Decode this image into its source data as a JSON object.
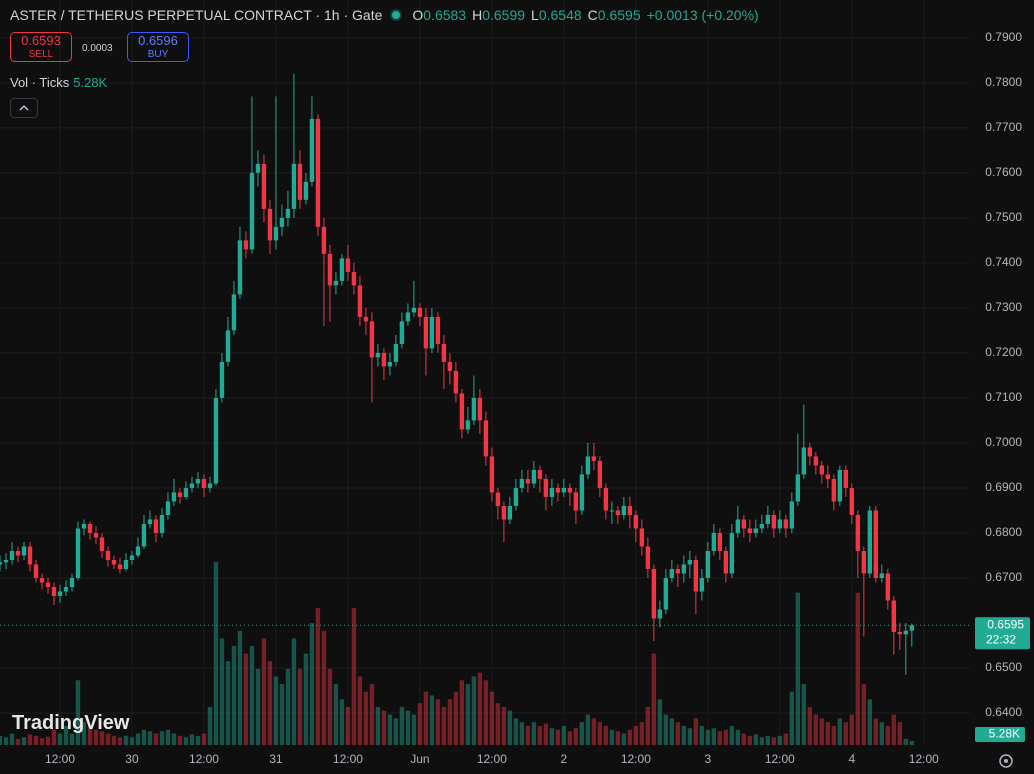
{
  "header": {
    "title": "ASTER / TETHERUS PERPETUAL CONTRACT · 1h · Gate",
    "ohlc": [
      {
        "key": "O",
        "value": "0.6583"
      },
      {
        "key": "H",
        "value": "0.6599"
      },
      {
        "key": "L",
        "value": "0.6548"
      },
      {
        "key": "C",
        "value": "0.6595"
      }
    ],
    "change": "+0.0013 (+0.20%)",
    "sell": {
      "price": "0.6593",
      "label": "SELL"
    },
    "spread": "0.0003",
    "buy": {
      "price": "0.6596",
      "label": "BUY"
    },
    "vol_legend": {
      "name": "Vol · Ticks",
      "value": "5.28K"
    },
    "logo": "TradingView"
  },
  "chart_data": {
    "type": "candlestick",
    "up_color": "#22ab94",
    "down_color": "#f23645",
    "grid": true,
    "xlim": [
      0,
      161.7
    ],
    "ylim": [
      0.6329,
      0.7984
    ],
    "vlim": [
      0,
      260
    ],
    "xticks": [
      {
        "value": 10,
        "label": "12:00"
      },
      {
        "value": 22,
        "label": "30"
      },
      {
        "value": 34,
        "label": "12:00"
      },
      {
        "value": 46,
        "label": "31"
      },
      {
        "value": 58,
        "label": "12:00"
      },
      {
        "value": 70,
        "label": "Jun"
      },
      {
        "value": 82,
        "label": "12:00"
      },
      {
        "value": 94,
        "label": "2"
      },
      {
        "value": 106,
        "label": "12:00"
      },
      {
        "value": 118,
        "label": "3"
      },
      {
        "value": 130,
        "label": "12:00"
      },
      {
        "value": 142,
        "label": "4"
      },
      {
        "value": 154,
        "label": "12:00"
      }
    ],
    "yticks": [
      {
        "value": 0.79,
        "label": "0.7900"
      },
      {
        "value": 0.78,
        "label": "0.7800"
      },
      {
        "value": 0.77,
        "label": "0.7700"
      },
      {
        "value": 0.76,
        "label": "0.7600"
      },
      {
        "value": 0.75,
        "label": "0.7500"
      },
      {
        "value": 0.74,
        "label": "0.7400"
      },
      {
        "value": 0.73,
        "label": "0.7300"
      },
      {
        "value": 0.72,
        "label": "0.7200"
      },
      {
        "value": 0.71,
        "label": "0.7100"
      },
      {
        "value": 0.7,
        "label": "0.7000"
      },
      {
        "value": 0.69,
        "label": "0.6900"
      },
      {
        "value": 0.68,
        "label": "0.6800"
      },
      {
        "value": 0.67,
        "label": "0.6700"
      },
      {
        "value": 0.65,
        "label": "0.6500"
      },
      {
        "value": 0.64,
        "label": "0.6400"
      }
    ],
    "price_tag": 0.6595,
    "countdown": "22:32",
    "volume_tag": {
      "value": 5.28,
      "label": "5.28K"
    },
    "candles": [
      [
        0.673,
        0.675,
        0.6715,
        0.6735
      ],
      [
        0.6735,
        0.6755,
        0.672,
        0.674
      ],
      [
        0.674,
        0.678,
        0.673,
        0.676
      ],
      [
        0.676,
        0.677,
        0.6735,
        0.675
      ],
      [
        0.675,
        0.678,
        0.674,
        0.677
      ],
      [
        0.677,
        0.678,
        0.6715,
        0.673
      ],
      [
        0.673,
        0.674,
        0.669,
        0.67
      ],
      [
        0.67,
        0.671,
        0.6675,
        0.669
      ],
      [
        0.669,
        0.67,
        0.6665,
        0.668
      ],
      [
        0.668,
        0.669,
        0.664,
        0.666
      ],
      [
        0.666,
        0.6685,
        0.6645,
        0.667
      ],
      [
        0.667,
        0.6695,
        0.666,
        0.668
      ],
      [
        0.668,
        0.671,
        0.667,
        0.67
      ],
      [
        0.67,
        0.6825,
        0.6695,
        0.681
      ],
      [
        0.681,
        0.683,
        0.6795,
        0.682
      ],
      [
        0.682,
        0.6825,
        0.6785,
        0.68
      ],
      [
        0.68,
        0.6815,
        0.6775,
        0.679
      ],
      [
        0.679,
        0.68,
        0.6745,
        0.676
      ],
      [
        0.676,
        0.677,
        0.6725,
        0.674
      ],
      [
        0.674,
        0.675,
        0.672,
        0.673
      ],
      [
        0.673,
        0.6745,
        0.671,
        0.672
      ],
      [
        0.672,
        0.6755,
        0.6715,
        0.674
      ],
      [
        0.674,
        0.676,
        0.673,
        0.675
      ],
      [
        0.675,
        0.679,
        0.6745,
        0.677
      ],
      [
        0.677,
        0.684,
        0.6765,
        0.682
      ],
      [
        0.682,
        0.685,
        0.681,
        0.683
      ],
      [
        0.683,
        0.684,
        0.678,
        0.68
      ],
      [
        0.68,
        0.6855,
        0.679,
        0.684
      ],
      [
        0.684,
        0.689,
        0.683,
        0.687
      ],
      [
        0.687,
        0.692,
        0.686,
        0.689
      ],
      [
        0.689,
        0.69,
        0.6865,
        0.688
      ],
      [
        0.688,
        0.6915,
        0.6875,
        0.69
      ],
      [
        0.69,
        0.6925,
        0.689,
        0.691
      ],
      [
        0.691,
        0.6935,
        0.69,
        0.692
      ],
      [
        0.692,
        0.693,
        0.688,
        0.69
      ],
      [
        0.69,
        0.6925,
        0.689,
        0.691
      ],
      [
        0.691,
        0.712,
        0.6905,
        0.71
      ],
      [
        0.71,
        0.72,
        0.709,
        0.718
      ],
      [
        0.718,
        0.728,
        0.717,
        0.725
      ],
      [
        0.725,
        0.736,
        0.724,
        0.733
      ],
      [
        0.733,
        0.748,
        0.732,
        0.745
      ],
      [
        0.745,
        0.747,
        0.741,
        0.743
      ],
      [
        0.743,
        0.777,
        0.742,
        0.76
      ],
      [
        0.76,
        0.765,
        0.757,
        0.762
      ],
      [
        0.762,
        0.764,
        0.749,
        0.752
      ],
      [
        0.752,
        0.754,
        0.742,
        0.745
      ],
      [
        0.745,
        0.777,
        0.743,
        0.748
      ],
      [
        0.748,
        0.753,
        0.746,
        0.75
      ],
      [
        0.75,
        0.756,
        0.748,
        0.752
      ],
      [
        0.752,
        0.782,
        0.75,
        0.762
      ],
      [
        0.762,
        0.765,
        0.752,
        0.754
      ],
      [
        0.754,
        0.76,
        0.753,
        0.758
      ],
      [
        0.758,
        0.777,
        0.757,
        0.772
      ],
      [
        0.772,
        0.773,
        0.746,
        0.748
      ],
      [
        0.748,
        0.75,
        0.726,
        0.742
      ],
      [
        0.742,
        0.744,
        0.727,
        0.735
      ],
      [
        0.735,
        0.738,
        0.733,
        0.736
      ],
      [
        0.736,
        0.742,
        0.735,
        0.741
      ],
      [
        0.741,
        0.744,
        0.736,
        0.738
      ],
      [
        0.738,
        0.74,
        0.733,
        0.735
      ],
      [
        0.735,
        0.737,
        0.726,
        0.728
      ],
      [
        0.728,
        0.73,
        0.724,
        0.727
      ],
      [
        0.727,
        0.729,
        0.709,
        0.719
      ],
      [
        0.719,
        0.722,
        0.717,
        0.72
      ],
      [
        0.72,
        0.721,
        0.714,
        0.717
      ],
      [
        0.717,
        0.72,
        0.715,
        0.718
      ],
      [
        0.718,
        0.724,
        0.717,
        0.722
      ],
      [
        0.722,
        0.729,
        0.721,
        0.727
      ],
      [
        0.727,
        0.731,
        0.726,
        0.729
      ],
      [
        0.729,
        0.736,
        0.728,
        0.73
      ],
      [
        0.73,
        0.731,
        0.726,
        0.728
      ],
      [
        0.728,
        0.73,
        0.715,
        0.721
      ],
      [
        0.721,
        0.73,
        0.72,
        0.728
      ],
      [
        0.728,
        0.729,
        0.72,
        0.722
      ],
      [
        0.722,
        0.724,
        0.712,
        0.718
      ],
      [
        0.718,
        0.72,
        0.713,
        0.716
      ],
      [
        0.716,
        0.718,
        0.709,
        0.711
      ],
      [
        0.711,
        0.712,
        0.701,
        0.703
      ],
      [
        0.703,
        0.708,
        0.702,
        0.705
      ],
      [
        0.705,
        0.715,
        0.704,
        0.71
      ],
      [
        0.71,
        0.712,
        0.702,
        0.705
      ],
      [
        0.705,
        0.707,
        0.695,
        0.697
      ],
      [
        0.697,
        0.699,
        0.687,
        0.689
      ],
      [
        0.689,
        0.69,
        0.683,
        0.686
      ],
      [
        0.686,
        0.687,
        0.678,
        0.683
      ],
      [
        0.683,
        0.688,
        0.682,
        0.686
      ],
      [
        0.686,
        0.692,
        0.685,
        0.69
      ],
      [
        0.69,
        0.694,
        0.689,
        0.692
      ],
      [
        0.692,
        0.694,
        0.689,
        0.691
      ],
      [
        0.691,
        0.696,
        0.69,
        0.694
      ],
      [
        0.694,
        0.695,
        0.689,
        0.692
      ],
      [
        0.692,
        0.693,
        0.685,
        0.688
      ],
      [
        0.688,
        0.692,
        0.686,
        0.69
      ],
      [
        0.69,
        0.691,
        0.687,
        0.689
      ],
      [
        0.689,
        0.692,
        0.688,
        0.69
      ],
      [
        0.69,
        0.691,
        0.686,
        0.689
      ],
      [
        0.689,
        0.69,
        0.682,
        0.685
      ],
      [
        0.685,
        0.695,
        0.684,
        0.693
      ],
      [
        0.693,
        0.7,
        0.692,
        0.697
      ],
      [
        0.697,
        0.7,
        0.694,
        0.696
      ],
      [
        0.696,
        0.697,
        0.688,
        0.69
      ],
      [
        0.69,
        0.691,
        0.683,
        0.685
      ],
      [
        0.685,
        0.687,
        0.682,
        0.685
      ],
      [
        0.685,
        0.686,
        0.682,
        0.684
      ],
      [
        0.684,
        0.688,
        0.683,
        0.686
      ],
      [
        0.686,
        0.688,
        0.681,
        0.684
      ],
      [
        0.684,
        0.685,
        0.678,
        0.681
      ],
      [
        0.681,
        0.683,
        0.675,
        0.677
      ],
      [
        0.677,
        0.679,
        0.67,
        0.672
      ],
      [
        0.672,
        0.673,
        0.656,
        0.661
      ],
      [
        0.661,
        0.665,
        0.659,
        0.663
      ],
      [
        0.663,
        0.672,
        0.662,
        0.67
      ],
      [
        0.67,
        0.674,
        0.669,
        0.672
      ],
      [
        0.672,
        0.673,
        0.668,
        0.671
      ],
      [
        0.671,
        0.675,
        0.669,
        0.673
      ],
      [
        0.673,
        0.676,
        0.67,
        0.674
      ],
      [
        0.674,
        0.675,
        0.662,
        0.667
      ],
      [
        0.667,
        0.672,
        0.665,
        0.67
      ],
      [
        0.67,
        0.678,
        0.669,
        0.676
      ],
      [
        0.676,
        0.682,
        0.675,
        0.68
      ],
      [
        0.68,
        0.681,
        0.674,
        0.676
      ],
      [
        0.676,
        0.677,
        0.669,
        0.671
      ],
      [
        0.671,
        0.682,
        0.67,
        0.68
      ],
      [
        0.68,
        0.686,
        0.679,
        0.683
      ],
      [
        0.683,
        0.684,
        0.679,
        0.681
      ],
      [
        0.681,
        0.683,
        0.678,
        0.68
      ],
      [
        0.68,
        0.683,
        0.679,
        0.681
      ],
      [
        0.681,
        0.684,
        0.68,
        0.682
      ],
      [
        0.682,
        0.686,
        0.681,
        0.684
      ],
      [
        0.684,
        0.685,
        0.679,
        0.681
      ],
      [
        0.681,
        0.685,
        0.68,
        0.683
      ],
      [
        0.683,
        0.684,
        0.679,
        0.681
      ],
      [
        0.681,
        0.689,
        0.68,
        0.687
      ],
      [
        0.687,
        0.702,
        0.686,
        0.693
      ],
      [
        0.693,
        0.7085,
        0.692,
        0.699
      ],
      [
        0.699,
        0.7,
        0.695,
        0.697
      ],
      [
        0.697,
        0.698,
        0.693,
        0.695
      ],
      [
        0.695,
        0.696,
        0.691,
        0.693
      ],
      [
        0.693,
        0.695,
        0.69,
        0.692
      ],
      [
        0.692,
        0.693,
        0.685,
        0.687
      ],
      [
        0.687,
        0.695,
        0.686,
        0.694
      ],
      [
        0.694,
        0.695,
        0.688,
        0.69
      ],
      [
        0.69,
        0.691,
        0.682,
        0.684
      ],
      [
        0.684,
        0.685,
        0.67,
        0.676
      ],
      [
        0.676,
        0.677,
        0.657,
        0.671
      ],
      [
        0.671,
        0.686,
        0.67,
        0.685
      ],
      [
        0.685,
        0.686,
        0.669,
        0.67
      ],
      [
        0.67,
        0.673,
        0.669,
        0.671
      ],
      [
        0.671,
        0.672,
        0.663,
        0.665
      ],
      [
        0.665,
        0.666,
        0.653,
        0.658
      ],
      [
        0.658,
        0.66,
        0.654,
        0.6575
      ],
      [
        0.6575,
        0.66,
        0.6485,
        0.6583
      ],
      [
        0.6583,
        0.6599,
        0.6548,
        0.6595
      ]
    ],
    "volume": [
      12,
      10,
      15,
      8,
      10,
      14,
      12,
      9,
      11,
      20,
      15,
      25,
      15,
      85,
      30,
      25,
      20,
      18,
      15,
      12,
      10,
      12,
      10,
      15,
      20,
      18,
      15,
      18,
      20,
      15,
      12,
      10,
      14,
      12,
      15,
      50,
      240,
      140,
      110,
      130,
      150,
      120,
      130,
      100,
      140,
      110,
      90,
      80,
      100,
      140,
      100,
      120,
      160,
      180,
      150,
      100,
      80,
      60,
      50,
      180,
      90,
      70,
      80,
      50,
      45,
      40,
      35,
      50,
      45,
      40,
      55,
      70,
      65,
      60,
      50,
      60,
      70,
      85,
      80,
      90,
      95,
      85,
      70,
      55,
      50,
      45,
      35,
      30,
      25,
      30,
      25,
      28,
      22,
      20,
      25,
      18,
      22,
      30,
      40,
      35,
      30,
      25,
      20,
      18,
      15,
      20,
      25,
      30,
      50,
      120,
      60,
      40,
      35,
      30,
      25,
      22,
      35,
      25,
      20,
      22,
      18,
      20,
      25,
      20,
      15,
      12,
      14,
      10,
      12,
      10,
      12,
      15,
      70,
      200,
      80,
      50,
      40,
      35,
      30,
      25,
      35,
      30,
      40,
      200,
      80,
      60,
      35,
      30,
      25,
      40,
      30,
      8,
      5.28
    ]
  }
}
